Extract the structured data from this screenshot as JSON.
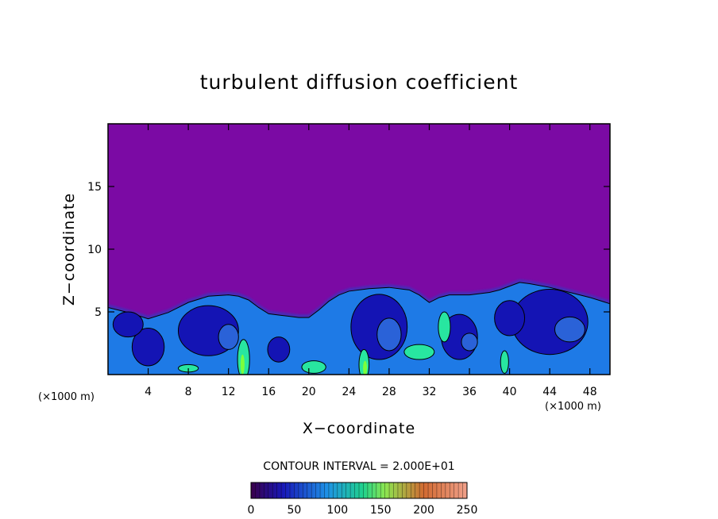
{
  "chart_data": {
    "type": "heatmap",
    "title": "turbulent diffusion coefficient",
    "xlabel": "X−coordinate",
    "ylabel": "Z−coordinate",
    "x_unit": "(×1000 m)",
    "z_unit": "(×1000 m)",
    "xlim": [
      0,
      50
    ],
    "ylim": [
      0,
      20
    ],
    "x_ticks": [
      4,
      8,
      12,
      16,
      20,
      24,
      28,
      32,
      36,
      40,
      44,
      48
    ],
    "y_ticks": [
      5,
      10,
      15
    ],
    "contour_interval_text": "CONTOUR INTERVAL = 2.000E+01",
    "contour_interval": 20,
    "colorbar": {
      "min": 0,
      "max": 250,
      "ticks": [
        0,
        50,
        100,
        150,
        200,
        250
      ]
    },
    "background_value": 0,
    "cloud_top_profile": {
      "x": [
        0,
        2,
        4,
        6,
        8,
        10,
        12,
        13,
        14,
        15,
        16,
        17,
        18,
        19,
        20,
        21,
        22,
        23,
        24,
        26,
        28,
        30,
        31,
        32,
        33,
        34,
        36,
        38,
        39,
        40,
        41,
        42,
        44,
        46,
        48,
        50
      ],
      "z": [
        5.6,
        5.2,
        4.7,
        5.2,
        6.0,
        6.5,
        6.6,
        6.5,
        6.2,
        5.6,
        5.1,
        5.0,
        4.9,
        4.8,
        4.8,
        5.4,
        6.1,
        6.6,
        6.9,
        7.1,
        7.2,
        7.0,
        6.6,
        6.0,
        6.4,
        6.6,
        6.6,
        6.8,
        7.0,
        7.3,
        7.6,
        7.5,
        7.2,
        6.8,
        6.4,
        5.9
      ]
    },
    "colors": {
      "background": "#7b0aa4",
      "low": "#1414b4",
      "mid": "#1e7ae6",
      "high": "#28e6a0",
      "peak": "#7cff3c"
    }
  }
}
